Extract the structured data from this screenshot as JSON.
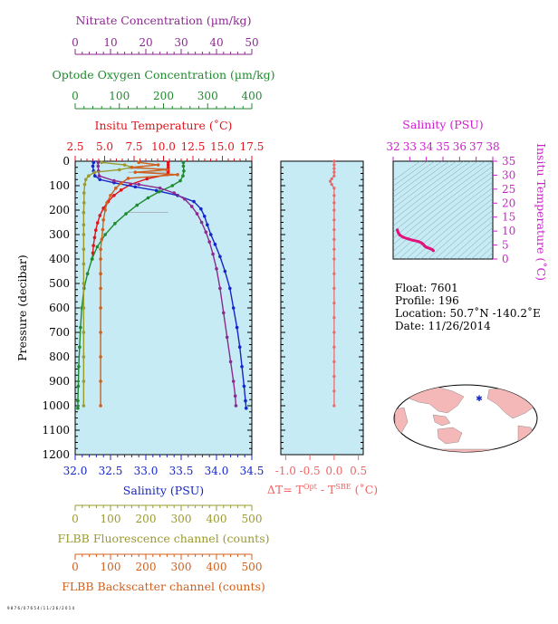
{
  "chart_data": {
    "type": "scatter",
    "main_panel": {
      "ylabel": "Pressure (decibar)",
      "y_ticks": [
        0,
        100,
        200,
        300,
        400,
        500,
        600,
        700,
        800,
        900,
        1000,
        1100,
        1200
      ],
      "ylim": [
        1200,
        0
      ],
      "axes": [
        {
          "key": "nitrate",
          "label": "Nitrate Concentration (µm/kg)",
          "position": "top",
          "level": 1,
          "range": [
            0,
            50
          ],
          "ticks": [
            0,
            10,
            20,
            30,
            40,
            50
          ],
          "color": "#8b2a8f"
        },
        {
          "key": "oxygen",
          "label": "Optode Oxygen Concentration (µm/kg)",
          "position": "top",
          "level": 2,
          "range": [
            0,
            400
          ],
          "ticks": [
            0,
            100,
            200,
            300,
            400
          ],
          "color": "#1f8a2e"
        },
        {
          "key": "temperature",
          "label": "Insitu Temperature (˚C)",
          "position": "top",
          "level": 3,
          "range": [
            2.5,
            17.5
          ],
          "ticks": [
            "2.5",
            "5.0",
            "7.5",
            "10.0",
            "12.5",
            "15.0",
            "17.5"
          ],
          "color": "#e0141c"
        },
        {
          "key": "salinity",
          "label": "Salinity (PSU)",
          "position": "bottom",
          "level": 1,
          "range": [
            32.0,
            34.5
          ],
          "ticks": [
            "32.0",
            "32.5",
            "33.0",
            "33.5",
            "34.0",
            "34.5"
          ],
          "color": "#1426c8"
        },
        {
          "key": "fluorescence",
          "label": "FLBB Fluorescence channel (counts)",
          "position": "bottom",
          "level": 2,
          "range": [
            0,
            500
          ],
          "ticks": [
            0,
            100,
            200,
            300,
            400,
            500
          ],
          "color": "#9a9a2e"
        },
        {
          "key": "backscatter",
          "label": "FLBB Backscatter channel (counts)",
          "position": "bottom",
          "level": 3,
          "range": [
            0,
            500
          ],
          "ticks": [
            0,
            100,
            200,
            300,
            400,
            500
          ],
          "color": "#d0601c"
        }
      ],
      "series": [
        {
          "axis": "temperature",
          "color": "#e0141c",
          "points": [
            [
              10.4,
              5
            ],
            [
              10.4,
              15
            ],
            [
              10.4,
              25
            ],
            [
              10.4,
              35
            ],
            [
              10.4,
              45
            ],
            [
              10.3,
              55
            ],
            [
              8.6,
              72
            ],
            [
              7.2,
              95
            ],
            [
              6.4,
              118
            ],
            [
              5.8,
              140
            ],
            [
              5.3,
              165
            ],
            [
              4.9,
              192
            ],
            [
              4.6,
              222
            ],
            [
              4.4,
              252
            ],
            [
              4.25,
              282
            ],
            [
              4.15,
              312
            ],
            [
              4.05,
              345
            ],
            [
              4.0,
              375
            ],
            [
              3.95,
              400
            ]
          ]
        },
        {
          "axis": "salinity",
          "color": "#1426c8",
          "points": [
            [
              32.26,
              5
            ],
            [
              32.25,
              20
            ],
            [
              32.26,
              40
            ],
            [
              32.28,
              60
            ],
            [
              32.35,
              75
            ],
            [
              32.55,
              88
            ],
            [
              32.85,
              105
            ],
            [
              33.15,
              120
            ],
            [
              33.45,
              140
            ],
            [
              33.68,
              165
            ],
            [
              33.78,
              195
            ],
            [
              33.83,
              225
            ],
            [
              33.87,
              260
            ],
            [
              33.92,
              300
            ],
            [
              33.98,
              340
            ],
            [
              34.05,
              390
            ],
            [
              34.12,
              450
            ],
            [
              34.19,
              520
            ],
            [
              34.24,
              600
            ],
            [
              34.29,
              680
            ],
            [
              34.33,
              760
            ],
            [
              34.36,
              840
            ],
            [
              34.39,
              920
            ],
            [
              34.41,
              980
            ],
            [
              34.42,
              1010
            ]
          ]
        },
        {
          "axis": "oxygen",
          "color": "#1f8a2e",
          "points": [
            [
              245,
              5
            ],
            [
              245,
              20
            ],
            [
              246,
              40
            ],
            [
              244,
              60
            ],
            [
              238,
              80
            ],
            [
              220,
              100
            ],
            [
              190,
              125
            ],
            [
              165,
              150
            ],
            [
              140,
              180
            ],
            [
              115,
              215
            ],
            [
              90,
              255
            ],
            [
              68,
              300
            ],
            [
              50,
              350
            ],
            [
              38,
              400
            ],
            [
              28,
              460
            ],
            [
              20,
              520
            ],
            [
              15,
              600
            ],
            [
              12,
              680
            ],
            [
              10,
              760
            ],
            [
              8,
              840
            ],
            [
              7,
              920
            ],
            [
              6,
              980
            ],
            [
              6,
              1010
            ]
          ]
        },
        {
          "axis": "nitrate",
          "color": "#8b2a8f",
          "points": [
            [
              6.5,
              5
            ],
            [
              6.5,
              20
            ],
            [
              6.6,
              40
            ],
            [
              6.8,
              60
            ],
            [
              11,
              80
            ],
            [
              18,
              95
            ],
            [
              24,
              110
            ],
            [
              28,
              130
            ],
            [
              31,
              155
            ],
            [
              33,
              185
            ],
            [
              34.5,
              215
            ],
            [
              35.8,
              250
            ],
            [
              37,
              290
            ],
            [
              38,
              330
            ],
            [
              39,
              380
            ],
            [
              40,
              440
            ],
            [
              41,
              520
            ],
            [
              42,
              620
            ],
            [
              43,
              720
            ],
            [
              44,
              820
            ],
            [
              44.8,
              900
            ],
            [
              45.3,
              960
            ],
            [
              45.5,
              1000
            ]
          ]
        },
        {
          "axis": "fluorescence",
          "color": "#9a9a2e",
          "points": [
            [
              75,
              5
            ],
            [
              140,
              15
            ],
            [
              160,
              25
            ],
            [
              125,
              35
            ],
            [
              55,
              45
            ],
            [
              38,
              60
            ],
            [
              30,
              75
            ],
            [
              27,
              95
            ],
            [
              25,
              130
            ],
            [
              25,
              170
            ],
            [
              24,
              210
            ],
            [
              24,
              260
            ],
            [
              24,
              300
            ],
            [
              24,
              360
            ],
            [
              24,
              420
            ],
            [
              24,
              500
            ],
            [
              24,
              600
            ],
            [
              24,
              700
            ],
            [
              24,
              800
            ],
            [
              24,
              900
            ],
            [
              24,
              1000
            ]
          ]
        },
        {
          "axis": "backscatter",
          "color": "#d0601c",
          "points": [
            [
              180,
              5
            ],
            [
              235,
              15
            ],
            [
              160,
              25
            ],
            [
              260,
              35
            ],
            [
              170,
              45
            ],
            [
              290,
              55
            ],
            [
              150,
              70
            ],
            [
              130,
              90
            ],
            [
              115,
              110
            ],
            [
              100,
              140
            ],
            [
              90,
              170
            ],
            [
              85,
              200
            ],
            [
              80,
              240
            ],
            [
              78,
              280
            ],
            [
              75,
              320
            ],
            [
              72,
              360
            ],
            [
              72,
              400
            ],
            [
              72,
              460
            ],
            [
              72,
              520
            ],
            [
              72,
              600
            ],
            [
              72,
              700
            ],
            [
              72,
              800
            ],
            [
              72,
              900
            ],
            [
              72,
              1000
            ]
          ]
        }
      ],
      "connector_lines_depth": [
        [
          10.4,
          30
        ],
        [
          10.4,
          45
        ],
        [
          10.4,
          210
        ]
      ]
    },
    "delta_panel": {
      "xlabel": "ΔT= T^Opt - T^SBE (˚C)",
      "xlabel_parts": {
        "main": "ΔT= T",
        "sup1": "Opt",
        "mid": " - T",
        "sup2": "SBE",
        "tail": " (˚C)"
      },
      "ticks": [
        "-1.0",
        "-0.5",
        "0.0",
        "0.5"
      ],
      "range": [
        -1.1,
        0.6
      ],
      "ylim": [
        1200,
        0
      ],
      "color": "#f06464",
      "points": [
        [
          0.0,
          0
        ],
        [
          0.0,
          15
        ],
        [
          0.0,
          30
        ],
        [
          0.0,
          45
        ],
        [
          0.0,
          60
        ],
        [
          -0.05,
          72
        ],
        [
          -0.08,
          82
        ],
        [
          -0.05,
          95
        ],
        [
          0.0,
          110
        ],
        [
          0.0,
          140
        ],
        [
          0.0,
          170
        ],
        [
          0.0,
          200
        ],
        [
          0.0,
          240
        ],
        [
          0.0,
          280
        ],
        [
          0.0,
          320
        ],
        [
          0.0,
          360
        ],
        [
          0.0,
          400
        ],
        [
          0.0,
          460
        ],
        [
          0.0,
          520
        ],
        [
          0.0,
          580
        ],
        [
          0.0,
          640
        ],
        [
          0.0,
          700
        ],
        [
          0.0,
          760
        ],
        [
          0.0,
          820
        ],
        [
          0.0,
          880
        ],
        [
          0.0,
          940
        ],
        [
          0.0,
          1000
        ]
      ]
    },
    "ts_panel": {
      "title": "Salinity (PSU)",
      "ylabel": "Insitu Temperature (˚C)",
      "x_ticks": [
        32,
        33,
        34,
        35,
        36,
        37,
        38
      ],
      "y_ticks": [
        0,
        5,
        10,
        15,
        20,
        25,
        30,
        35
      ],
      "xlim": [
        32,
        38
      ],
      "ylim": [
        0,
        35
      ],
      "color": "#e0147a",
      "points": [
        [
          32.25,
          10.4
        ],
        [
          32.26,
          10.3
        ],
        [
          32.3,
          9.5
        ],
        [
          32.4,
          8.6
        ],
        [
          32.6,
          7.8
        ],
        [
          32.9,
          7.2
        ],
        [
          33.2,
          6.7
        ],
        [
          33.5,
          6.3
        ],
        [
          33.7,
          5.8
        ],
        [
          33.8,
          5.3
        ],
        [
          33.88,
          4.8
        ],
        [
          33.95,
          4.4
        ],
        [
          34.05,
          4.1
        ],
        [
          34.2,
          3.8
        ],
        [
          34.35,
          3.4
        ],
        [
          34.42,
          3.0
        ]
      ]
    }
  },
  "info": {
    "float": "Float:  7601",
    "profile": "Profile:  196",
    "location": "Location:  50.7˚N  -140.2˚E",
    "date": "Date:  11/26/2014"
  },
  "map": {
    "marker_lat": 50.7,
    "marker_lon": -140.2,
    "land_color": "#f4b8b8",
    "ocean_color": "#ffffff",
    "marker_color": "#1426c8"
  },
  "footer_text": "9 8 7 6 / 0 7 6 5 4 /  1 1 / 2 6 / 2 0 1 4"
}
